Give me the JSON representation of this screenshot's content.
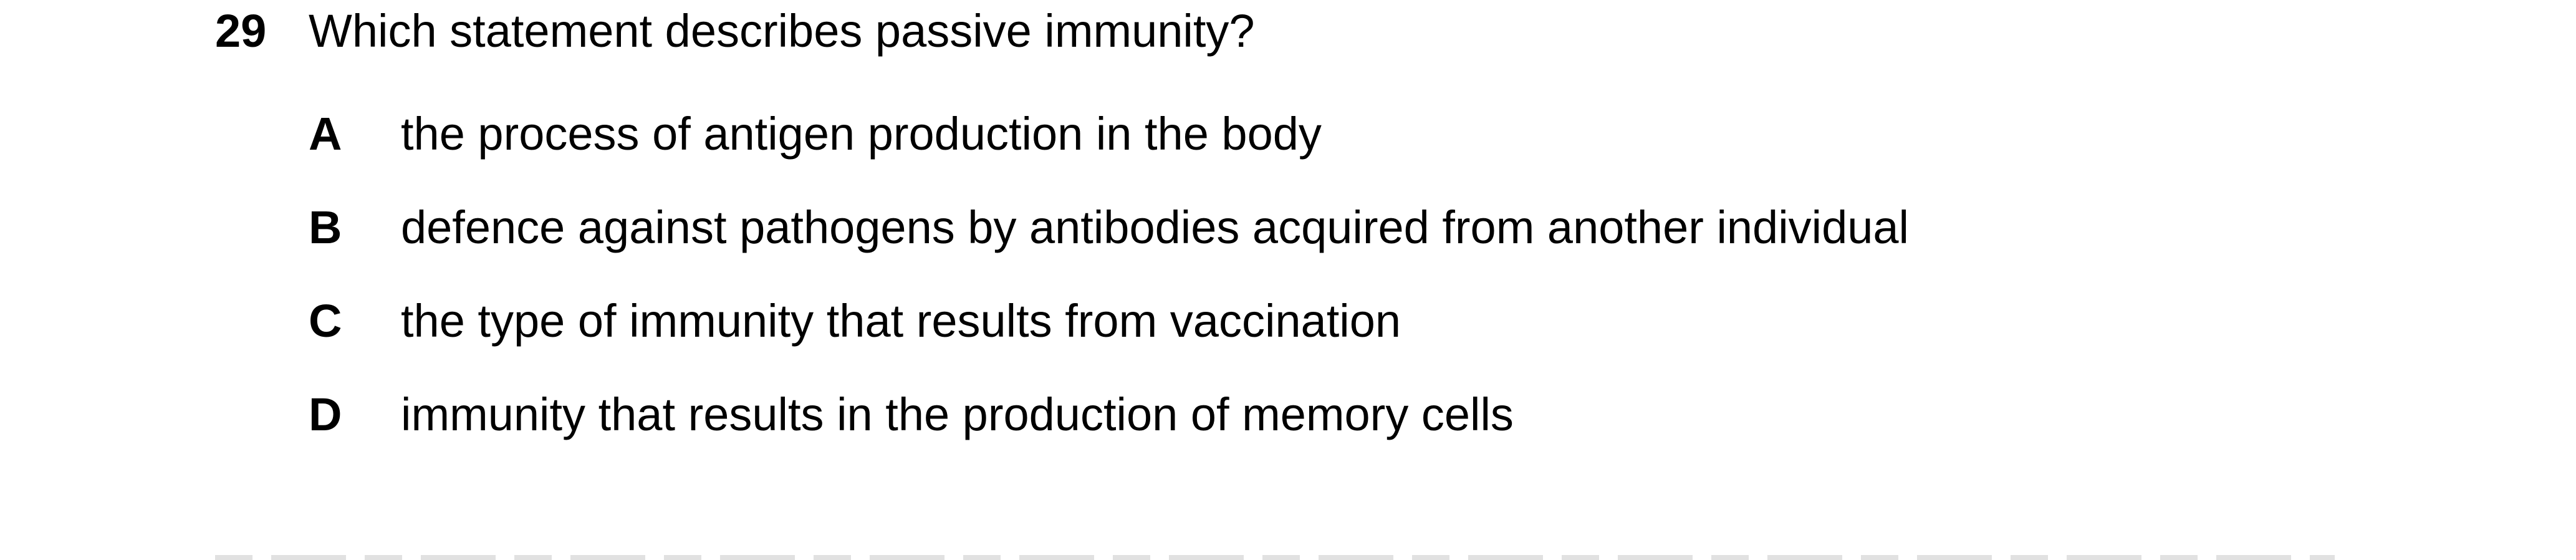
{
  "question": {
    "number": "29",
    "text": "Which statement describes passive immunity?",
    "options": [
      {
        "letter": "A",
        "text": "the process of antigen production in the body"
      },
      {
        "letter": "B",
        "text": "defence against pathogens by antibodies acquired from another individual"
      },
      {
        "letter": "C",
        "text": "the type of immunity that results from vaccination"
      },
      {
        "letter": "D",
        "text": "immunity that results in the production of memory cells"
      }
    ]
  }
}
